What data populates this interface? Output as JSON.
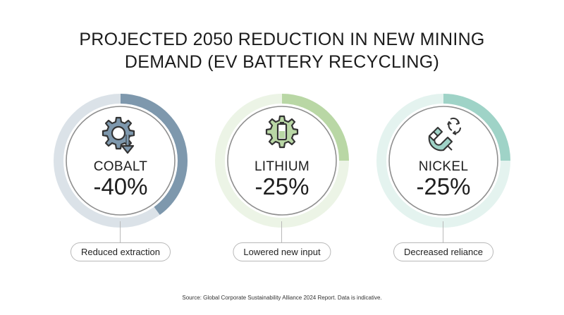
{
  "title_lines": [
    "PROJECTED 2050 REDUCTION IN NEW MINING",
    "DEMAND (EV BATTERY RECYCLING)"
  ],
  "source": "Source: Global Corporate Sustainability Alliance 2024 Report. Data is indicative.",
  "colors": {
    "cobalt": "#7e98ad",
    "lithium": "#b9d7a5",
    "nickel": "#9fd3c7",
    "track": "#e3e3e3",
    "text": "#1f1f1f"
  },
  "chart_data": {
    "type": "radial-progress",
    "title": "PROJECTED 2050 REDUCTION IN NEW MINING DEMAND (EV BATTERY RECYCLING)",
    "unit": "%",
    "items": [
      {
        "metal": "COBALT",
        "value": -40,
        "label": "-40%",
        "caption": "Reduced extraction",
        "icon": "gear-recycle-arrow-icon",
        "color": "#7e98ad"
      },
      {
        "metal": "LITHIUM",
        "value": -25,
        "label": "-25%",
        "caption": "Lowered new input",
        "icon": "gear-battery-icon",
        "color": "#b9d7a5"
      },
      {
        "metal": "NICKEL",
        "value": -25,
        "label": "-25%",
        "caption": "Decreased reliance",
        "icon": "magnet-recycle-icon",
        "color": "#9fd3c7"
      }
    ]
  }
}
